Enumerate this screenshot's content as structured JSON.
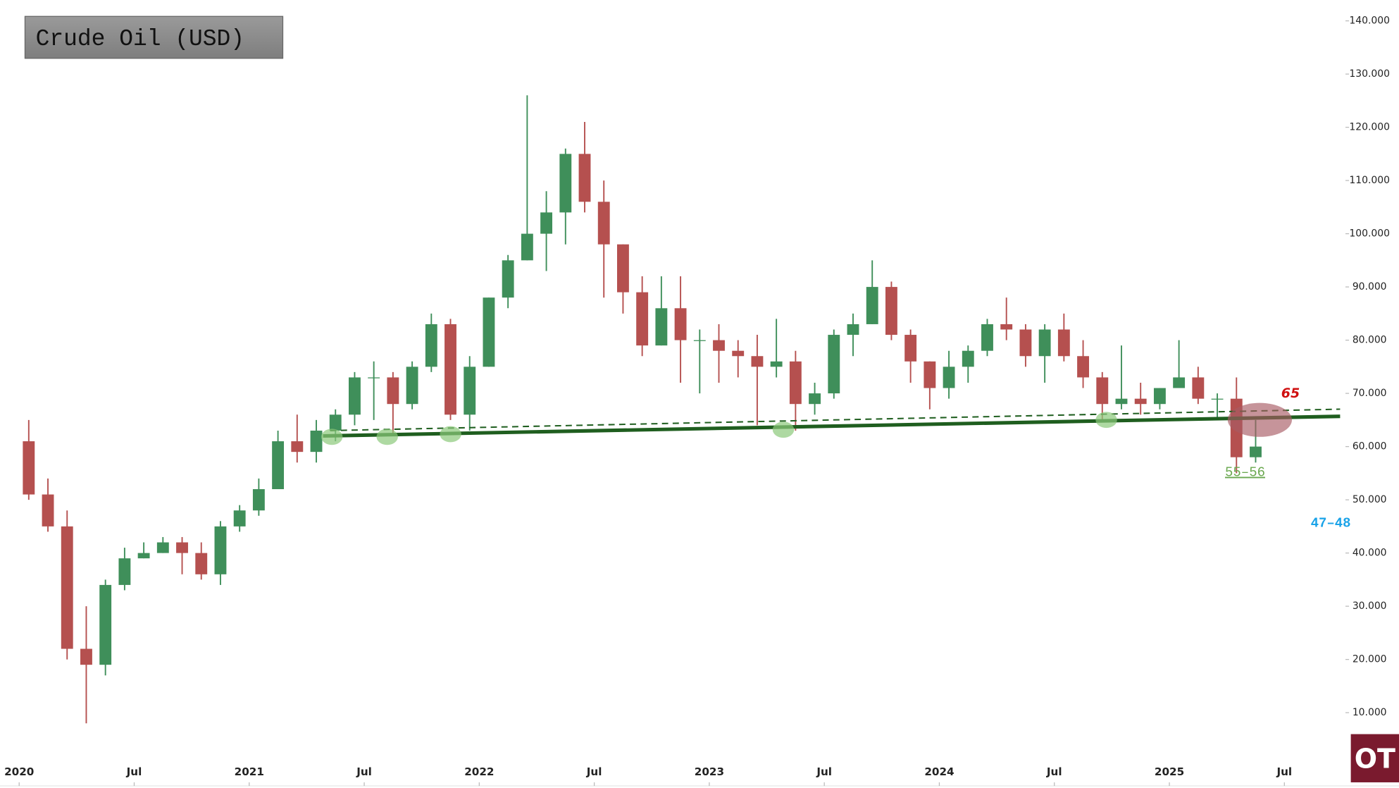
{
  "chart_data": {
    "type": "candlestick",
    "title": "Crude Oil (USD)",
    "x": [
      "2020-01",
      "2020-02",
      "2020-03",
      "2020-04",
      "2020-05",
      "2020-06",
      "2020-07",
      "2020-08",
      "2020-09",
      "2020-10",
      "2020-11",
      "2020-12",
      "2021-01",
      "2021-02",
      "2021-03",
      "2021-04",
      "2021-05",
      "2021-06",
      "2021-07",
      "2021-08",
      "2021-09",
      "2021-10",
      "2021-11",
      "2021-12",
      "2022-01",
      "2022-02",
      "2022-03",
      "2022-04",
      "2022-05",
      "2022-06",
      "2022-07",
      "2022-08",
      "2022-09",
      "2022-10",
      "2022-11",
      "2022-12",
      "2023-01",
      "2023-02",
      "2023-03",
      "2023-04",
      "2023-05",
      "2023-06",
      "2023-07",
      "2023-08",
      "2023-09",
      "2023-10",
      "2023-11",
      "2023-12",
      "2024-01",
      "2024-02",
      "2024-03",
      "2024-04",
      "2024-05",
      "2024-06",
      "2024-07",
      "2024-08",
      "2024-09",
      "2024-10",
      "2024-11",
      "2024-12",
      "2025-01",
      "2025-02",
      "2025-03",
      "2025-04",
      "2025-05"
    ],
    "open": [
      61,
      51,
      45,
      22,
      19,
      34,
      39,
      40,
      42,
      40,
      36,
      45,
      48,
      52,
      61,
      59,
      63,
      66,
      73,
      73,
      68,
      75,
      83,
      66,
      75,
      88,
      95,
      100,
      104,
      115,
      106,
      98,
      89,
      79,
      86,
      80,
      80,
      78,
      77,
      75,
      76,
      68,
      70,
      81,
      83,
      90,
      81,
      76,
      71,
      75,
      78,
      83,
      82,
      77,
      82,
      77,
      73,
      68,
      69,
      68,
      71,
      73,
      69,
      69,
      58
    ],
    "high": [
      65,
      54,
      48,
      30,
      35,
      41,
      42,
      43,
      43,
      42,
      46,
      49,
      54,
      63,
      66,
      65,
      67,
      74,
      76,
      74,
      76,
      85,
      84,
      77,
      88,
      96,
      126,
      108,
      116,
      121,
      110,
      98,
      92,
      92,
      92,
      82,
      83,
      80,
      81,
      84,
      78,
      72,
      82,
      85,
      95,
      91,
      82,
      76,
      78,
      79,
      84,
      88,
      83,
      83,
      85,
      80,
      74,
      79,
      72,
      71,
      80,
      75,
      70,
      73,
      65
    ],
    "low": [
      50,
      44,
      20,
      8,
      17,
      33,
      39,
      40,
      36,
      35,
      34,
      44,
      47,
      52,
      57,
      57,
      61,
      64,
      65,
      62,
      67,
      74,
      65,
      63,
      75,
      86,
      95,
      93,
      98,
      104,
      88,
      85,
      77,
      79,
      72,
      70,
      72,
      73,
      64,
      73,
      63,
      66,
      69,
      77,
      83,
      80,
      72,
      67,
      69,
      72,
      77,
      80,
      75,
      72,
      76,
      71,
      65,
      67,
      66,
      67,
      71,
      68,
      65,
      55,
      57
    ],
    "close": [
      51,
      45,
      22,
      19,
      34,
      39,
      40,
      42,
      40,
      36,
      45,
      48,
      52,
      61,
      59,
      63,
      66,
      73,
      73,
      68,
      75,
      83,
      66,
      75,
      88,
      95,
      100,
      104,
      115,
      106,
      98,
      89,
      79,
      86,
      80,
      80,
      78,
      77,
      75,
      76,
      68,
      70,
      81,
      83,
      90,
      81,
      76,
      71,
      75,
      78,
      83,
      82,
      77,
      82,
      77,
      73,
      68,
      69,
      68,
      71,
      73,
      69,
      69,
      58,
      60
    ],
    "up_color": "#3f8f5a",
    "down_color": "#b5504f",
    "xlim": [
      "2019-12",
      "2025-10"
    ],
    "xticks": [
      {
        "value": "2020-01",
        "label": "2020"
      },
      {
        "value": "2020-07",
        "label": "Jul"
      },
      {
        "value": "2021-01",
        "label": "2021"
      },
      {
        "value": "2021-07",
        "label": "Jul"
      },
      {
        "value": "2022-01",
        "label": "2022"
      },
      {
        "value": "2022-07",
        "label": "Jul"
      },
      {
        "value": "2023-01",
        "label": "2023"
      },
      {
        "value": "2023-07",
        "label": "Jul"
      },
      {
        "value": "2024-01",
        "label": "2024"
      },
      {
        "value": "2024-07",
        "label": "Jul"
      },
      {
        "value": "2025-01",
        "label": "2025"
      },
      {
        "value": "2025-07",
        "label": "Jul"
      }
    ],
    "ylim": [
      1.27,
      143.86
    ],
    "yticks": [
      {
        "value": 10,
        "label": "10.000"
      },
      {
        "value": 20,
        "label": "20.000"
      },
      {
        "value": 30,
        "label": "30.000"
      },
      {
        "value": 40,
        "label": "40.000"
      },
      {
        "value": 50,
        "label": "50.000"
      },
      {
        "value": 60,
        "label": "60.000"
      },
      {
        "value": 70,
        "label": "70.000"
      },
      {
        "value": 80,
        "label": "80.000"
      },
      {
        "value": 90,
        "label": "90.000"
      },
      {
        "value": 100,
        "label": "100.000"
      },
      {
        "value": 110,
        "label": "110.000"
      },
      {
        "value": 120,
        "label": "120.000"
      },
      {
        "value": 130,
        "label": "130.000"
      },
      {
        "value": 140,
        "label": "140.000"
      }
    ],
    "annotations": [
      "65",
      "55–56",
      "47–48"
    ],
    "logo": "OT"
  }
}
